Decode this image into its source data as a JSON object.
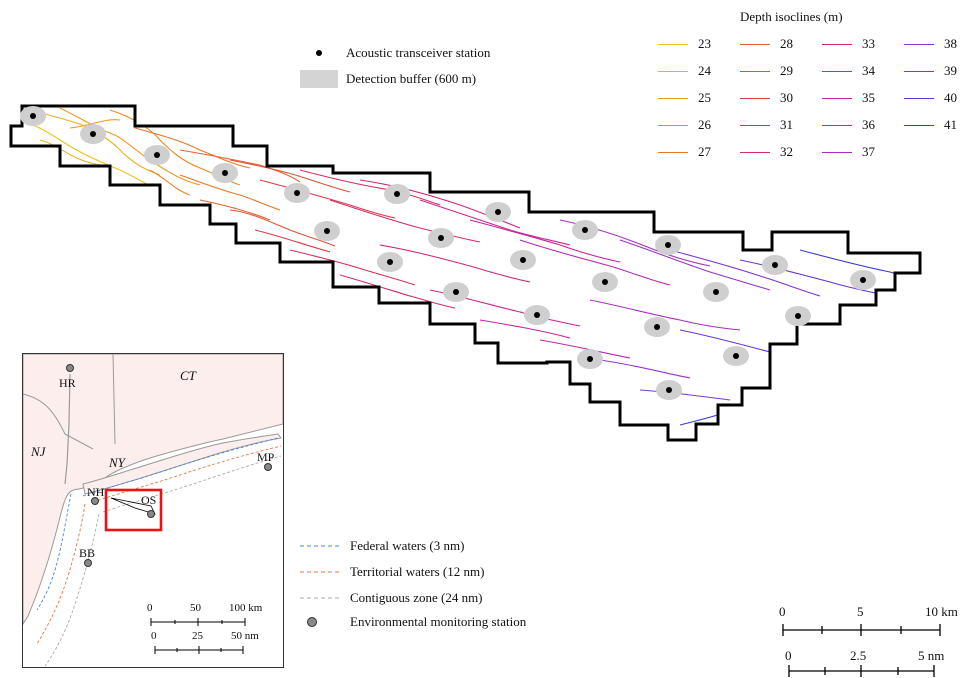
{
  "main_map": {
    "depth_isoclines": {
      "title": "Depth isoclines (m)",
      "items": [
        {
          "depth": "23",
          "color": "#f0c21e"
        },
        {
          "depth": "24",
          "color": "#eeb020"
        },
        {
          "depth": "25",
          "color": "#ec9c22"
        },
        {
          "depth": "26",
          "color": "#e98a26"
        },
        {
          "depth": "27",
          "color": "#e6762b"
        },
        {
          "depth": "28",
          "color": "#e3622f"
        },
        {
          "depth": "29",
          "color": "#e05036"
        },
        {
          "depth": "30",
          "color": "#dc3e44"
        },
        {
          "depth": "31",
          "color": "#d8305a"
        },
        {
          "depth": "32",
          "color": "#d42b6e"
        },
        {
          "depth": "33",
          "color": "#d0287f"
        },
        {
          "depth": "34",
          "color": "#cc2690"
        },
        {
          "depth": "35",
          "color": "#c426a2"
        },
        {
          "depth": "36",
          "color": "#b82ab2"
        },
        {
          "depth": "37",
          "color": "#a82fbe"
        },
        {
          "depth": "38",
          "color": "#9533c8"
        },
        {
          "depth": "39",
          "color": "#8236cf"
        },
        {
          "depth": "40",
          "color": "#6a36d2"
        },
        {
          "depth": "41",
          "color": "#3b3bd6"
        }
      ]
    },
    "legend": {
      "station_label": "Acoustic transceiver station",
      "buffer_label": "Detection buffer (600 m)"
    },
    "scalebar_km": {
      "ticks": [
        "0",
        "5",
        "10 km"
      ]
    },
    "scalebar_nm": {
      "ticks": [
        "0",
        "2.5",
        "5 nm"
      ]
    }
  },
  "inset_map": {
    "region_labels": [
      "CT",
      "NJ",
      "NY"
    ],
    "station_labels": [
      "HR",
      "MP",
      "NH",
      "OS",
      "BB"
    ],
    "scalebar_km": {
      "ticks": [
        "0",
        "50",
        "100 km"
      ]
    },
    "scalebar_nm": {
      "ticks": [
        "0",
        "25",
        "50 nm"
      ]
    }
  },
  "boundary_legend": {
    "federal": {
      "label": "Federal waters (3 nm)",
      "color": "#4a86d9"
    },
    "territorial": {
      "label": "Territorial waters (12 nm)",
      "color": "#e07a4a"
    },
    "contiguous": {
      "label": "Contiguous zone (24 nm)",
      "color": "#aaaaaa"
    },
    "monitoring": {
      "label": "Environmental monitoring station"
    }
  }
}
